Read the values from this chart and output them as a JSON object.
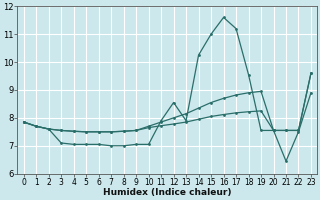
{
  "xlabel": "Humidex (Indice chaleur)",
  "bg_color": "#cce8ec",
  "grid_color": "#b8d8dc",
  "line_color": "#2a6e6a",
  "xticks": [
    0,
    1,
    2,
    3,
    4,
    5,
    6,
    7,
    8,
    9,
    10,
    11,
    12,
    13,
    14,
    15,
    16,
    17,
    18,
    19,
    20,
    21,
    22,
    23
  ],
  "yticks": [
    6,
    7,
    8,
    9,
    10,
    11,
    12
  ],
  "xlim": [
    -0.5,
    23.5
  ],
  "ylim": [
    6.0,
    12.0
  ],
  "line1_x": [
    0,
    1,
    2,
    3,
    4,
    5,
    6,
    7,
    8,
    9,
    10,
    11,
    12,
    13,
    14,
    15,
    16,
    17,
    18,
    19,
    20,
    21,
    22,
    23
  ],
  "line1_y": [
    7.85,
    7.7,
    7.6,
    7.1,
    7.05,
    7.05,
    7.05,
    7.0,
    7.0,
    7.05,
    7.05,
    7.9,
    8.55,
    7.9,
    10.25,
    11.0,
    11.6,
    11.2,
    9.55,
    7.55,
    7.55,
    6.45,
    7.5,
    8.9
  ],
  "line2_x": [
    0,
    1,
    2,
    3,
    4,
    5,
    6,
    7,
    8,
    9,
    10,
    11,
    12,
    13,
    14,
    15,
    16,
    17,
    18,
    19,
    20,
    21,
    22,
    23
  ],
  "line2_y": [
    7.85,
    7.7,
    7.6,
    7.55,
    7.52,
    7.5,
    7.5,
    7.5,
    7.52,
    7.55,
    7.7,
    7.85,
    8.0,
    8.15,
    8.35,
    8.55,
    8.7,
    8.82,
    8.9,
    8.95,
    7.55,
    7.55,
    7.55,
    9.6
  ],
  "line3_x": [
    0,
    1,
    2,
    3,
    4,
    5,
    6,
    7,
    8,
    9,
    10,
    11,
    12,
    13,
    14,
    15,
    16,
    17,
    18,
    19,
    20,
    21,
    22,
    23
  ],
  "line3_y": [
    7.85,
    7.7,
    7.6,
    7.55,
    7.52,
    7.5,
    7.5,
    7.5,
    7.52,
    7.55,
    7.65,
    7.72,
    7.78,
    7.85,
    7.95,
    8.05,
    8.12,
    8.18,
    8.22,
    8.25,
    7.55,
    7.55,
    7.55,
    9.6
  ]
}
